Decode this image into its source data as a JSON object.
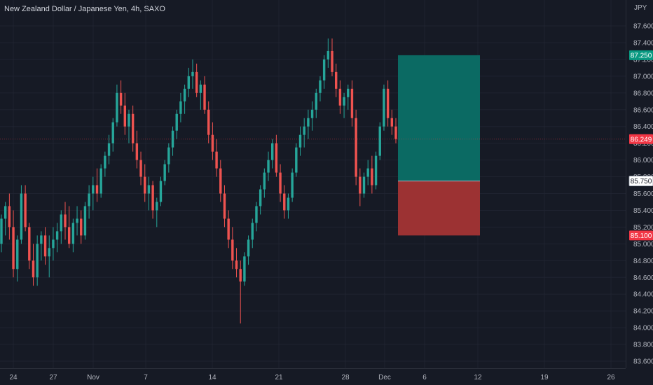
{
  "header": {
    "title": "New Zealand Dollar / Japanese Yen, 4h, SAXO"
  },
  "currency_label": "JPY",
  "chart_data": {
    "type": "candlestick",
    "title": "New Zealand Dollar / Japanese Yen, 4h, SAXO",
    "symbol": "NZDJPY",
    "interval": "4h",
    "source": "SAXO",
    "currency": "JPY",
    "ylim": [
      83.5,
      87.8
    ],
    "y_ticks": [
      "83.600",
      "83.800",
      "84.000",
      "84.200",
      "84.400",
      "84.600",
      "84.800",
      "85.000",
      "85.200",
      "85.400",
      "85.600",
      "85.800",
      "86.000",
      "86.200",
      "86.400",
      "86.600",
      "86.800",
      "87.000",
      "87.200",
      "87.400",
      "87.600"
    ],
    "x_ticks": [
      "24",
      "27",
      "Nov",
      "7",
      "14",
      "21",
      "28",
      "Dec",
      "6",
      "12",
      "19",
      "26"
    ],
    "last_price": {
      "value": "86.249",
      "color": "#f23645"
    },
    "position": {
      "target": {
        "value": "87.250",
        "color": "#089981"
      },
      "entry": {
        "value": "85.750",
        "color": "#ffffff"
      },
      "stop": {
        "value": "85.100",
        "color": "#f23645"
      }
    },
    "candle_colors": {
      "up": "#26a69a",
      "down": "#ef5350"
    },
    "candles": [
      [
        85.0,
        85.35,
        84.9,
        85.3
      ],
      [
        85.3,
        85.5,
        85.1,
        85.45
      ],
      [
        85.45,
        85.6,
        85.05,
        85.2
      ],
      [
        85.2,
        85.4,
        84.6,
        84.7
      ],
      [
        84.7,
        85.1,
        84.55,
        85.05
      ],
      [
        85.05,
        85.7,
        85.0,
        85.6
      ],
      [
        85.6,
        85.7,
        85.15,
        85.2
      ],
      [
        85.2,
        85.25,
        84.7,
        84.8
      ],
      [
        84.8,
        85.0,
        84.5,
        84.6
      ],
      [
        84.6,
        85.1,
        84.5,
        85.0
      ],
      [
        85.0,
        85.15,
        84.8,
        85.1
      ],
      [
        85.1,
        85.2,
        84.75,
        84.85
      ],
      [
        84.85,
        85.1,
        84.6,
        84.95
      ],
      [
        84.95,
        85.2,
        84.8,
        85.05
      ],
      [
        85.05,
        85.25,
        84.9,
        85.15
      ],
      [
        85.15,
        85.4,
        85.0,
        85.35
      ],
      [
        85.35,
        85.5,
        85.05,
        85.2
      ],
      [
        85.2,
        85.45,
        84.95,
        85.0
      ],
      [
        85.0,
        85.3,
        84.9,
        85.25
      ],
      [
        85.25,
        85.45,
        85.1,
        85.3
      ],
      [
        85.3,
        85.4,
        85.0,
        85.1
      ],
      [
        85.1,
        85.5,
        85.05,
        85.45
      ],
      [
        85.45,
        85.7,
        85.3,
        85.6
      ],
      [
        85.6,
        85.8,
        85.4,
        85.7
      ],
      [
        85.7,
        85.9,
        85.5,
        85.6
      ],
      [
        85.6,
        85.95,
        85.55,
        85.9
      ],
      [
        85.9,
        86.1,
        85.8,
        86.05
      ],
      [
        86.05,
        86.3,
        85.95,
        86.2
      ],
      [
        86.2,
        86.5,
        86.1,
        86.45
      ],
      [
        86.45,
        86.9,
        86.4,
        86.8
      ],
      [
        86.8,
        86.95,
        86.55,
        86.65
      ],
      [
        86.65,
        86.8,
        86.3,
        86.4
      ],
      [
        86.4,
        86.6,
        86.2,
        86.55
      ],
      [
        86.55,
        86.65,
        86.1,
        86.2
      ],
      [
        86.2,
        86.35,
        85.9,
        86.0
      ],
      [
        86.0,
        86.1,
        85.7,
        85.8
      ],
      [
        85.8,
        85.95,
        85.5,
        85.6
      ],
      [
        85.6,
        85.8,
        85.4,
        85.7
      ],
      [
        85.7,
        85.75,
        85.3,
        85.4
      ],
      [
        85.4,
        85.55,
        85.2,
        85.5
      ],
      [
        85.5,
        85.8,
        85.45,
        85.75
      ],
      [
        85.75,
        86.0,
        85.7,
        85.95
      ],
      [
        85.95,
        86.2,
        85.85,
        86.15
      ],
      [
        86.15,
        86.4,
        86.05,
        86.35
      ],
      [
        86.35,
        86.6,
        86.25,
        86.55
      ],
      [
        86.55,
        86.8,
        86.45,
        86.7
      ],
      [
        86.7,
        86.9,
        86.55,
        86.85
      ],
      [
        86.85,
        87.1,
        86.75,
        87.0
      ],
      [
        87.0,
        87.2,
        86.85,
        87.05
      ],
      [
        87.05,
        87.15,
        86.75,
        86.8
      ],
      [
        86.8,
        86.95,
        86.6,
        86.9
      ],
      [
        86.9,
        87.0,
        86.55,
        86.6
      ],
      [
        86.6,
        86.7,
        86.2,
        86.3
      ],
      [
        86.3,
        86.45,
        86.0,
        86.1
      ],
      [
        86.1,
        86.25,
        85.8,
        85.9
      ],
      [
        85.9,
        86.0,
        85.5,
        85.6
      ],
      [
        85.6,
        85.7,
        85.2,
        85.3
      ],
      [
        85.3,
        85.4,
        84.95,
        85.05
      ],
      [
        85.05,
        85.2,
        84.7,
        84.8
      ],
      [
        84.8,
        84.95,
        84.6,
        84.7
      ],
      [
        84.7,
        84.8,
        84.05,
        84.55
      ],
      [
        84.55,
        84.9,
        84.5,
        84.85
      ],
      [
        84.85,
        85.1,
        84.75,
        85.05
      ],
      [
        85.05,
        85.3,
        84.95,
        85.25
      ],
      [
        85.25,
        85.5,
        85.15,
        85.45
      ],
      [
        85.45,
        85.7,
        85.35,
        85.65
      ],
      [
        85.65,
        85.9,
        85.55,
        85.85
      ],
      [
        85.85,
        86.1,
        85.75,
        86.0
      ],
      [
        86.0,
        86.25,
        85.9,
        86.2
      ],
      [
        86.2,
        86.3,
        85.8,
        85.85
      ],
      [
        85.85,
        85.95,
        85.5,
        85.6
      ],
      [
        85.6,
        85.7,
        85.3,
        85.4
      ],
      [
        85.4,
        85.6,
        85.3,
        85.55
      ],
      [
        85.55,
        85.9,
        85.5,
        85.85
      ],
      [
        85.85,
        86.2,
        85.8,
        86.15
      ],
      [
        86.15,
        86.4,
        86.05,
        86.3
      ],
      [
        86.3,
        86.5,
        86.15,
        86.4
      ],
      [
        86.4,
        86.6,
        86.25,
        86.5
      ],
      [
        86.5,
        86.7,
        86.35,
        86.6
      ],
      [
        86.6,
        86.85,
        86.5,
        86.8
      ],
      [
        86.8,
        87.0,
        86.7,
        86.95
      ],
      [
        86.95,
        87.25,
        86.85,
        87.2
      ],
      [
        87.2,
        87.45,
        87.1,
        87.3
      ],
      [
        87.3,
        87.45,
        87.0,
        87.05
      ],
      [
        87.05,
        87.15,
        86.75,
        86.85
      ],
      [
        86.85,
        86.95,
        86.55,
        86.65
      ],
      [
        86.65,
        86.8,
        86.5,
        86.75
      ],
      [
        86.75,
        86.9,
        86.6,
        86.85
      ],
      [
        86.85,
        86.95,
        86.4,
        86.5
      ],
      [
        86.5,
        86.6,
        85.7,
        85.8
      ],
      [
        85.8,
        85.9,
        85.45,
        85.6
      ],
      [
        85.6,
        85.85,
        85.55,
        85.8
      ],
      [
        85.8,
        86.0,
        85.7,
        85.9
      ],
      [
        85.9,
        86.05,
        85.6,
        85.7
      ],
      [
        85.7,
        86.1,
        85.65,
        86.05
      ],
      [
        86.05,
        86.45,
        86.0,
        86.4
      ],
      [
        86.4,
        86.9,
        86.35,
        86.85
      ],
      [
        86.85,
        86.95,
        86.4,
        86.5
      ],
      [
        86.5,
        86.6,
        86.3,
        86.4
      ],
      [
        86.4,
        86.5,
        86.2,
        86.25
      ]
    ]
  }
}
